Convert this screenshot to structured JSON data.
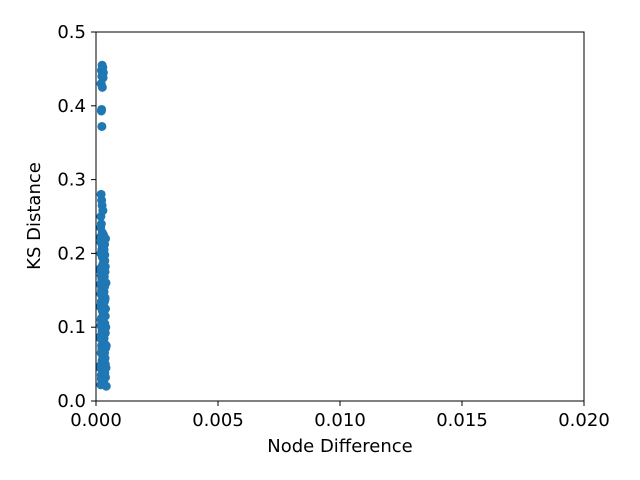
{
  "chart_data": {
    "type": "scatter",
    "xlabel": "Node Difference",
    "ylabel": "KS Distance",
    "xlim": [
      0,
      0.02
    ],
    "ylim": [
      0,
      0.5
    ],
    "xticks": [
      0,
      0.005,
      0.01,
      0.015,
      0.02
    ],
    "xtick_labels": [
      "0.000",
      "0.005",
      "0.010",
      "0.015",
      "0.020"
    ],
    "yticks": [
      0,
      0.1,
      0.2,
      0.3,
      0.4,
      0.5
    ],
    "ytick_labels": [
      "0.0",
      "0.1",
      "0.2",
      "0.3",
      "0.4",
      "0.5"
    ],
    "grid": false,
    "marker_color": "#1f77b4",
    "x": [
      0.00025,
      0.00028,
      0.00022,
      0.0003,
      0.00027,
      0.00024,
      0.00029,
      0.00021,
      0.00026,
      0.00023,
      0.00022,
      0.00024,
      0.00021,
      0.00023,
      0.00025,
      0.00028,
      0.0002,
      0.00022,
      0.00019,
      0.00026,
      0.00031,
      0.00018,
      0.00033,
      0.00029,
      0.00035,
      0.0003,
      0.00024,
      0.0002,
      0.00036,
      0.00027,
      0.00032,
      0.00028,
      0.00038,
      0.00016,
      0.00025,
      0.00021,
      0.00034,
      0.00029,
      0.0003,
      0.00018,
      0.00035,
      0.00024,
      0.00033,
      0.0002,
      0.00027,
      0.00037,
      0.00022,
      0.00031,
      0.00017,
      0.00039,
      0.00026,
      0.0003,
      0.00034,
      0.00022,
      0.00028,
      0.00036,
      0.0002,
      0.00032,
      0.00025,
      0.00038,
      0.00019,
      0.00033,
      0.00027,
      0.00035,
      0.00023,
      0.0004,
      0.00029,
      0.00021,
      0.00031,
      0.00037,
      0.00025,
      0.00034,
      0.00018,
      0.00041,
      0.00028,
      0.00036,
      0.00022,
      0.00039,
      0.00027,
      0.00032,
      0.0002,
      0.00042,
      0.00029,
      0.00035,
      0.00024,
      0.00038,
      0.00017,
      0.0003,
      0.00026,
      0.0004,
      0.00021,
      0.00033,
      0.00028,
      0.00037,
      0.00023,
      0.00041,
      0.00031,
      0.00019,
      0.00036,
      0.00026,
      0.00039,
      0.00022,
      0.00034,
      0.00029,
      0.00042,
      0.00018,
      0.00032,
      0.00025,
      0.00038,
      0.00027,
      0.00035,
      0.00021,
      0.0003,
      0.00024,
      0.00037,
      0.00028,
      0.00026,
      0.00033,
      0.0002,
      0.00031
    ],
    "y": [
      0.455,
      0.452,
      0.448,
      0.445,
      0.442,
      0.44,
      0.438,
      0.43,
      0.425,
      0.395,
      0.393,
      0.372,
      0.28,
      0.272,
      0.265,
      0.258,
      0.25,
      0.24,
      0.235,
      0.228,
      0.225,
      0.222,
      0.218,
      0.215,
      0.212,
      0.208,
      0.205,
      0.2,
      0.198,
      0.195,
      0.19,
      0.185,
      0.182,
      0.178,
      0.175,
      0.17,
      0.168,
      0.165,
      0.162,
      0.158,
      0.155,
      0.152,
      0.148,
      0.145,
      0.142,
      0.138,
      0.135,
      0.132,
      0.128,
      0.125,
      0.122,
      0.118,
      0.115,
      0.112,
      0.108,
      0.105,
      0.102,
      0.098,
      0.095,
      0.092,
      0.088,
      0.085,
      0.082,
      0.078,
      0.075,
      0.072,
      0.068,
      0.065,
      0.062,
      0.058,
      0.055,
      0.052,
      0.048,
      0.045,
      0.042,
      0.038,
      0.035,
      0.032,
      0.028,
      0.025,
      0.022,
      0.02,
      0.06,
      0.065,
      0.07,
      0.05,
      0.045,
      0.08,
      0.09,
      0.1,
      0.11,
      0.12,
      0.13,
      0.14,
      0.15,
      0.16,
      0.17,
      0.18,
      0.19,
      0.21,
      0.22,
      0.03,
      0.04,
      0.055,
      0.075,
      0.085,
      0.095,
      0.105,
      0.115,
      0.125,
      0.135,
      0.145,
      0.155,
      0.165,
      0.175,
      0.185,
      0.195,
      0.205,
      0.215,
      0.06
    ]
  }
}
